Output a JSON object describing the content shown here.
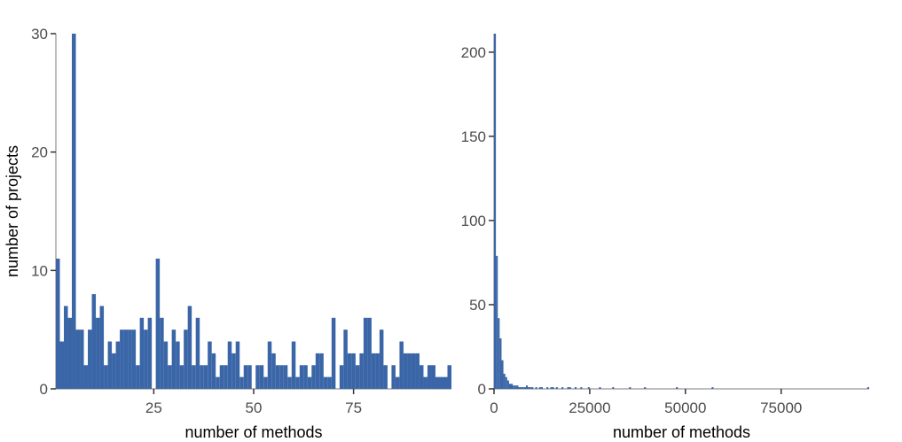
{
  "colors": {
    "bar": "#3a66a7",
    "axis": "#bdbdbd",
    "tick": "#333333",
    "label": "#4d4d4d"
  },
  "chart_data": [
    {
      "type": "bar",
      "xlabel": "number of methods",
      "ylabel": "number of projects",
      "xlim": [
        0.5,
        99.5
      ],
      "ylim": [
        0,
        30
      ],
      "xticks": [
        25,
        50,
        75
      ],
      "xtick_labels": [
        "25",
        "50",
        "75"
      ],
      "yticks": [
        0,
        10,
        20,
        30
      ],
      "ytick_labels": [
        "0",
        "10",
        "20",
        "30"
      ],
      "x": [
        1,
        2,
        3,
        4,
        5,
        6,
        7,
        8,
        9,
        10,
        11,
        12,
        13,
        14,
        15,
        16,
        17,
        18,
        19,
        20,
        21,
        22,
        23,
        24,
        25,
        26,
        27,
        28,
        29,
        30,
        31,
        32,
        33,
        34,
        35,
        36,
        37,
        38,
        39,
        40,
        41,
        42,
        43,
        44,
        45,
        46,
        47,
        48,
        49,
        50,
        51,
        52,
        53,
        54,
        55,
        56,
        57,
        58,
        59,
        60,
        61,
        62,
        63,
        64,
        65,
        66,
        67,
        68,
        69,
        70,
        71,
        72,
        73,
        74,
        75,
        76,
        77,
        78,
        79,
        80,
        81,
        82,
        83,
        84,
        85,
        86,
        87,
        88,
        89,
        90,
        91,
        92,
        93,
        94,
        95,
        96,
        97,
        98,
        99
      ],
      "values": [
        11,
        4,
        7,
        6,
        30,
        5,
        5,
        2,
        5,
        8,
        6,
        7,
        2,
        4,
        3,
        4,
        5,
        5,
        5,
        5,
        2,
        6,
        5,
        6,
        0,
        11,
        6,
        4,
        2,
        5,
        4,
        2,
        5,
        7,
        2,
        6,
        2,
        2,
        4,
        3,
        1,
        2,
        2,
        4,
        3,
        4,
        1,
        2,
        2,
        0,
        2,
        2,
        1,
        4,
        3,
        2,
        2,
        2,
        1,
        4,
        1,
        2,
        2,
        1,
        2,
        3,
        3,
        1,
        1,
        6,
        0,
        2,
        5,
        3,
        3,
        2,
        3,
        6,
        6,
        3,
        3,
        5,
        2,
        0,
        2,
        1,
        4,
        3,
        3,
        3,
        3,
        2,
        1,
        2,
        2,
        1,
        1,
        1,
        2
      ],
      "y_extra": [
        0,
        0,
        0,
        0,
        0,
        0,
        0,
        0,
        0,
        0,
        0,
        0,
        0,
        0,
        0,
        0,
        0,
        0,
        0,
        0,
        0,
        0,
        0,
        0,
        0,
        0,
        0,
        0,
        0,
        0,
        0,
        0,
        0,
        0,
        0,
        0,
        0,
        0,
        0,
        0,
        0,
        0,
        0,
        0,
        0,
        0,
        0,
        0,
        0,
        0,
        0,
        0,
        0,
        0,
        0,
        0,
        0,
        0,
        0,
        0,
        0,
        0,
        0,
        0,
        0,
        0,
        0,
        0,
        0,
        0,
        0,
        0,
        0,
        0,
        0,
        0,
        0,
        0,
        0,
        0,
        0,
        0,
        0,
        0,
        0,
        0,
        0,
        0,
        0,
        0,
        0,
        0,
        0,
        0,
        0,
        0,
        0,
        0,
        0
      ]
    },
    {
      "type": "bar",
      "xlabel": "number of methods",
      "ylabel": "",
      "xlim": [
        0,
        98000
      ],
      "ylim": [
        0,
        211
      ],
      "xticks": [
        0,
        25000,
        50000,
        75000
      ],
      "xtick_labels": [
        "0",
        "25000",
        "50000",
        "75000"
      ],
      "yticks": [
        0,
        50,
        100,
        150,
        200
      ],
      "ytick_labels": [
        "0",
        "50",
        "100",
        "150",
        "200"
      ],
      "bin_width": 490,
      "x": [
        0,
        490,
        980,
        1470,
        1960,
        2450,
        2940,
        3430,
        3920,
        4410,
        4900,
        5390,
        5880,
        6370,
        6860,
        7350,
        7840,
        8330,
        8820,
        9310,
        9800,
        10780,
        11760,
        12250,
        13720,
        14700,
        15190,
        16170,
        17640,
        19110,
        19600,
        21070,
        22540,
        24500,
        27440,
        30870,
        35280,
        39200,
        47530,
        56840,
        97510
      ],
      "values": [
        211,
        79,
        42,
        30,
        17,
        9,
        7,
        5,
        3,
        3,
        2,
        2,
        2,
        1,
        1,
        1,
        1,
        2,
        1,
        1,
        1,
        1,
        1,
        1,
        1,
        1,
        1,
        1,
        1,
        1,
        1,
        1,
        1,
        1,
        1,
        1,
        1,
        1,
        1,
        1,
        1
      ]
    }
  ]
}
